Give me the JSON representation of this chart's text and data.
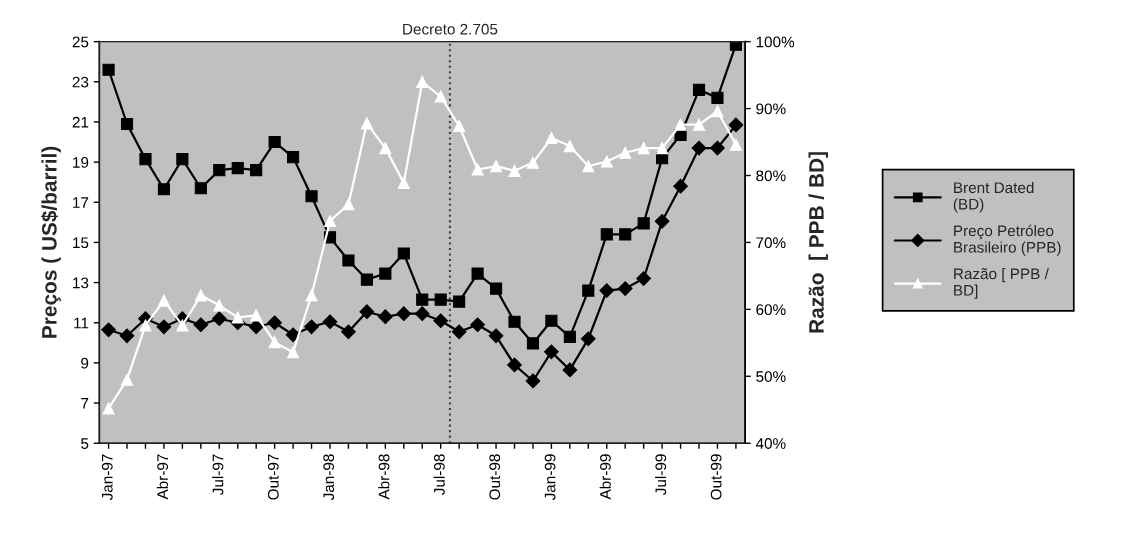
{
  "chart_data": {
    "type": "line",
    "ylabel": "Preços ( US$/barril)",
    "y2label": "Razão  [ PPB / BD]",
    "x": [
      "1997-01",
      "1997-02",
      "1997-03",
      "1997-04",
      "1997-05",
      "1997-06",
      "1997-07",
      "1997-08",
      "1997-09",
      "1997-10",
      "1997-11",
      "1997-12",
      "1998-01",
      "1998-02",
      "1998-03",
      "1998-04",
      "1998-05",
      "1998-06",
      "1998-07",
      "1998-08",
      "1998-09",
      "1998-10",
      "1998-11",
      "1998-12",
      "1999-01",
      "1999-02",
      "1999-03",
      "1999-04",
      "1999-05",
      "1999-06",
      "1999-07",
      "1999-08",
      "1999-09",
      "1999-10",
      "1999-11"
    ],
    "series": [
      {
        "name": "Brent Dated\n(BD)",
        "color": "#000000",
        "marker": "square",
        "values": [
          23.6,
          20.9,
          19.15,
          17.65,
          19.15,
          17.7,
          18.6,
          18.7,
          18.6,
          20.0,
          19.25,
          17.3,
          15.25,
          14.1,
          13.15,
          13.45,
          14.45,
          12.15,
          12.15,
          12.05,
          13.45,
          12.7,
          11.05,
          9.97,
          11.1,
          10.3,
          12.6,
          15.4,
          15.4,
          15.95,
          19.2,
          20.35,
          22.6,
          22.2,
          24.85
        ]
      },
      {
        "name": "Preço Petróleo\nBrasileiro (PPB)",
        "color": "#000000",
        "marker": "diamond",
        "values": [
          10.65,
          10.35,
          11.2,
          10.8,
          11.2,
          10.9,
          11.2,
          11.0,
          10.8,
          11.0,
          10.4,
          10.8,
          11.05,
          10.55,
          11.55,
          11.3,
          11.45,
          11.45,
          11.1,
          10.55,
          10.9,
          10.35,
          8.9,
          8.1,
          9.55,
          8.65,
          10.2,
          12.6,
          12.7,
          13.2,
          16.05,
          17.8,
          19.7,
          19.7,
          20.85
        ]
      },
      {
        "name": "Razão [ PPB /\nBD]",
        "color": "#ffffff",
        "marker": "triangle",
        "axis": "y2",
        "values": [
          45.2,
          49.5,
          57.6,
          61.3,
          57.6,
          62.1,
          60.6,
          58.8,
          59.1,
          55.1,
          53.6,
          62.1,
          73.2,
          75.7,
          87.8,
          84.1,
          78.9,
          94.0,
          91.8,
          87.4,
          80.9,
          81.4,
          80.7,
          81.9,
          85.6,
          84.4,
          81.4,
          82.1,
          83.4,
          84.1,
          84.1,
          87.6,
          87.6,
          89.6,
          84.6
        ]
      }
    ],
    "xlim": [
      "1996-12-16",
      "1999-11-16"
    ],
    "xticks": [
      {
        "value": "1997-01",
        "label": "Jan-97"
      },
      {
        "value": "1997-02",
        "label": null
      },
      {
        "value": "1997-03",
        "label": null
      },
      {
        "value": "1997-04",
        "label": "Abr-97"
      },
      {
        "value": "1997-05",
        "label": null
      },
      {
        "value": "1997-06",
        "label": null
      },
      {
        "value": "1997-07",
        "label": "Jul-97"
      },
      {
        "value": "1997-08",
        "label": null
      },
      {
        "value": "1997-09",
        "label": null
      },
      {
        "value": "1997-10",
        "label": "Out-97"
      },
      {
        "value": "1997-11",
        "label": null
      },
      {
        "value": "1997-12",
        "label": null
      },
      {
        "value": "1998-01",
        "label": "Jan-98"
      },
      {
        "value": "1998-02",
        "label": null
      },
      {
        "value": "1998-03",
        "label": null
      },
      {
        "value": "1998-04",
        "label": "Abr-98"
      },
      {
        "value": "1998-05",
        "label": null
      },
      {
        "value": "1998-06",
        "label": null
      },
      {
        "value": "1998-07",
        "label": "Jul-98"
      },
      {
        "value": "1998-08",
        "label": null
      },
      {
        "value": "1998-09",
        "label": null
      },
      {
        "value": "1998-10",
        "label": "Out-98"
      },
      {
        "value": "1998-11",
        "label": null
      },
      {
        "value": "1998-12",
        "label": null
      },
      {
        "value": "1999-01",
        "label": "Jan-99"
      },
      {
        "value": "1999-02",
        "label": null
      },
      {
        "value": "1999-03",
        "label": null
      },
      {
        "value": "1999-04",
        "label": "Abr-99"
      },
      {
        "value": "1999-05",
        "label": null
      },
      {
        "value": "1999-06",
        "label": null
      },
      {
        "value": "1999-07",
        "label": "Jul-99"
      },
      {
        "value": "1999-08",
        "label": null
      },
      {
        "value": "1999-09",
        "label": null
      },
      {
        "value": "1999-10",
        "label": "Out-99"
      },
      {
        "value": "1999-11",
        "label": null
      }
    ],
    "ylim": [
      5,
      25
    ],
    "yticks": [
      5,
      7,
      9,
      11,
      13,
      15,
      17,
      19,
      21,
      23,
      25
    ],
    "y2lim": [
      40,
      100
    ],
    "y2ticks": [
      {
        "value": 40,
        "label": "40%"
      },
      {
        "value": 50,
        "label": "50%"
      },
      {
        "value": 60,
        "label": "60%"
      },
      {
        "value": 70,
        "label": "70%"
      },
      {
        "value": 80,
        "label": "80%"
      },
      {
        "value": 90,
        "label": "90%"
      },
      {
        "value": 100,
        "label": "100%"
      }
    ],
    "ref_lines": [
      {
        "axis": "x",
        "value": "1998-07-16",
        "label": "Decreto 2.705",
        "color": "#404040",
        "line_style": "dotted"
      }
    ],
    "grid": false,
    "legend": "right"
  }
}
